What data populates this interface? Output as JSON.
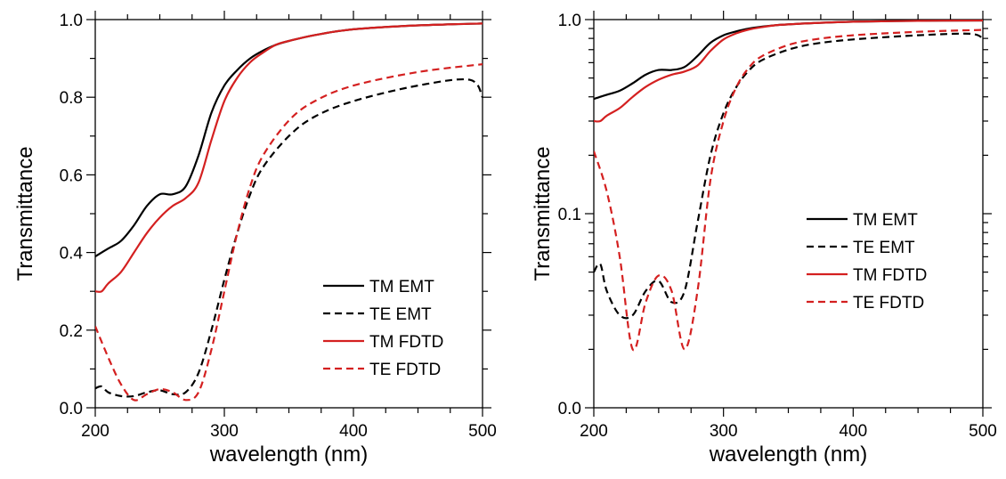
{
  "colors": {
    "emt": "#000000",
    "fdtd": "#d42020"
  },
  "chart_data": [
    {
      "type": "line",
      "xlabel": "wavelength (nm)",
      "ylabel": "Transmittance",
      "xlim": [
        200,
        500
      ],
      "ylim": [
        0,
        1
      ],
      "yscale": "linear",
      "xticks": [
        200,
        300,
        400,
        500
      ],
      "yticks": [
        0.0,
        0.2,
        0.4,
        0.6,
        0.8,
        1.0
      ],
      "ytick_labels": [
        "0.0",
        "0.2",
        "0.4",
        "0.6",
        "0.8",
        "1.0"
      ],
      "grid": false,
      "legend": "bottom-right",
      "series": [
        {
          "name": "TM EMT",
          "style": "solid",
          "color": "#000000",
          "x": [
            200,
            210,
            220,
            230,
            240,
            250,
            260,
            270,
            280,
            290,
            300,
            310,
            320,
            330,
            340,
            350,
            370,
            400,
            450,
            500
          ],
          "y": [
            0.39,
            0.41,
            0.43,
            0.47,
            0.52,
            0.55,
            0.55,
            0.57,
            0.65,
            0.76,
            0.83,
            0.87,
            0.9,
            0.92,
            0.935,
            0.945,
            0.96,
            0.975,
            0.985,
            0.99
          ]
        },
        {
          "name": "TE EMT",
          "style": "dashed",
          "color": "#000000",
          "x": [
            200,
            205,
            210,
            220,
            230,
            240,
            250,
            260,
            270,
            280,
            290,
            300,
            310,
            320,
            330,
            350,
            370,
            400,
            450,
            490,
            500
          ],
          "y": [
            0.05,
            0.055,
            0.04,
            0.03,
            0.03,
            0.04,
            0.045,
            0.035,
            0.04,
            0.09,
            0.2,
            0.33,
            0.45,
            0.55,
            0.62,
            0.7,
            0.75,
            0.79,
            0.83,
            0.845,
            0.8
          ]
        },
        {
          "name": "TM FDTD",
          "style": "solid",
          "color": "#d42020",
          "x": [
            200,
            205,
            210,
            220,
            230,
            240,
            250,
            260,
            270,
            280,
            290,
            300,
            310,
            320,
            330,
            340,
            350,
            370,
            400,
            450,
            500
          ],
          "y": [
            0.3,
            0.3,
            0.32,
            0.35,
            0.4,
            0.45,
            0.49,
            0.52,
            0.54,
            0.58,
            0.69,
            0.79,
            0.85,
            0.89,
            0.915,
            0.935,
            0.945,
            0.96,
            0.975,
            0.985,
            0.99
          ]
        },
        {
          "name": "TE FDTD",
          "style": "dashed",
          "color": "#d42020",
          "x": [
            200,
            210,
            220,
            230,
            240,
            250,
            260,
            270,
            280,
            290,
            300,
            310,
            320,
            330,
            350,
            370,
            400,
            450,
            500
          ],
          "y": [
            0.21,
            0.13,
            0.06,
            0.02,
            0.035,
            0.048,
            0.04,
            0.02,
            0.04,
            0.15,
            0.3,
            0.45,
            0.57,
            0.65,
            0.74,
            0.79,
            0.83,
            0.865,
            0.885
          ]
        }
      ]
    },
    {
      "type": "line",
      "xlabel": "wavelength (nm)",
      "ylabel": "Transmittance",
      "xlim": [
        200,
        500
      ],
      "ylim": [
        0.01,
        1
      ],
      "yscale": "log",
      "xticks": [
        200,
        300,
        400,
        500
      ],
      "yticks": [
        0.01,
        0.1,
        1.0
      ],
      "ytick_labels": [
        "0.0",
        "0.1",
        "1.0"
      ],
      "grid": false,
      "legend": "right",
      "series": [
        {
          "name": "TM EMT",
          "style": "solid",
          "color": "#000000",
          "x": [
            200,
            210,
            220,
            230,
            240,
            250,
            260,
            270,
            280,
            290,
            300,
            310,
            320,
            330,
            340,
            350,
            370,
            400,
            450,
            500
          ],
          "y": [
            0.39,
            0.41,
            0.43,
            0.47,
            0.52,
            0.55,
            0.55,
            0.57,
            0.65,
            0.76,
            0.83,
            0.87,
            0.9,
            0.92,
            0.935,
            0.945,
            0.96,
            0.975,
            0.985,
            0.99
          ]
        },
        {
          "name": "TE EMT",
          "style": "dashed",
          "color": "#000000",
          "x": [
            200,
            205,
            210,
            220,
            230,
            240,
            250,
            260,
            270,
            280,
            290,
            300,
            310,
            320,
            330,
            350,
            370,
            400,
            450,
            490,
            500
          ],
          "y": [
            0.05,
            0.055,
            0.04,
            0.03,
            0.03,
            0.04,
            0.045,
            0.035,
            0.04,
            0.09,
            0.2,
            0.33,
            0.45,
            0.55,
            0.62,
            0.7,
            0.75,
            0.79,
            0.83,
            0.845,
            0.8
          ]
        },
        {
          "name": "TM FDTD",
          "style": "solid",
          "color": "#d42020",
          "x": [
            200,
            205,
            210,
            220,
            230,
            240,
            250,
            260,
            270,
            280,
            290,
            300,
            310,
            320,
            330,
            340,
            350,
            370,
            400,
            450,
            500
          ],
          "y": [
            0.3,
            0.3,
            0.32,
            0.35,
            0.4,
            0.45,
            0.49,
            0.52,
            0.54,
            0.58,
            0.69,
            0.79,
            0.85,
            0.89,
            0.915,
            0.935,
            0.945,
            0.96,
            0.975,
            0.985,
            0.99
          ]
        },
        {
          "name": "TE FDTD",
          "style": "dashed",
          "color": "#d42020",
          "x": [
            200,
            210,
            220,
            230,
            240,
            250,
            260,
            270,
            280,
            290,
            300,
            310,
            320,
            330,
            350,
            370,
            400,
            450,
            500
          ],
          "y": [
            0.21,
            0.13,
            0.06,
            0.02,
            0.035,
            0.048,
            0.04,
            0.02,
            0.04,
            0.15,
            0.3,
            0.45,
            0.57,
            0.65,
            0.74,
            0.79,
            0.83,
            0.865,
            0.885
          ]
        }
      ]
    }
  ]
}
